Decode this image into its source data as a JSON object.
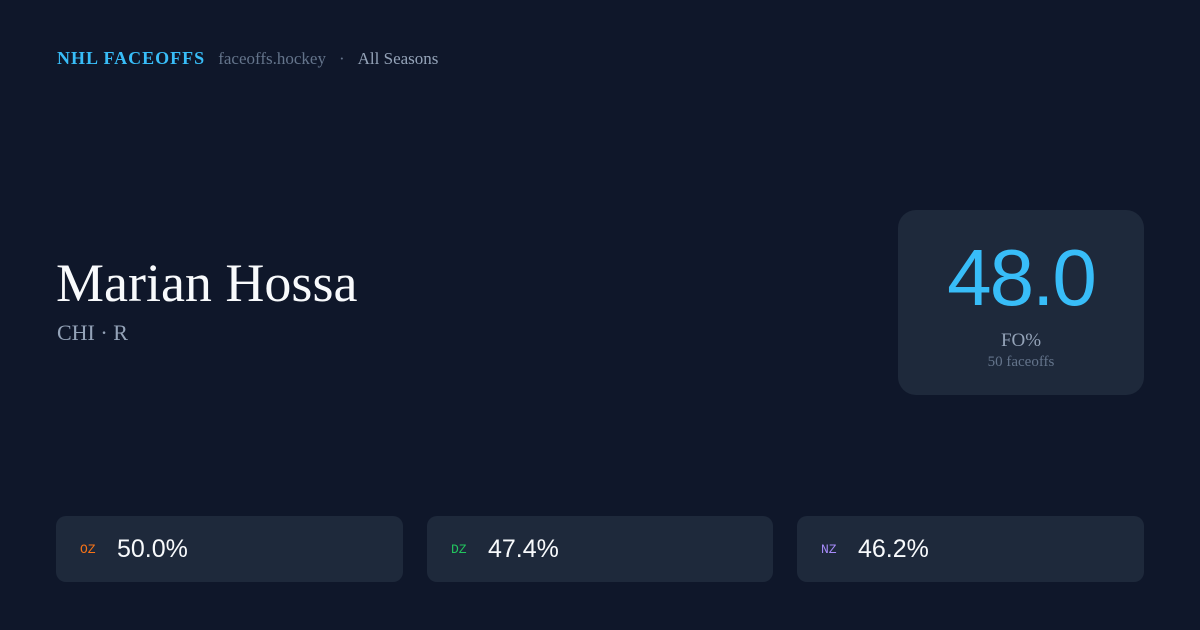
{
  "header": {
    "brand": "NHL FACEOFFS",
    "site": "faceoffs.hockey",
    "separator": "·",
    "season": "All Seasons"
  },
  "player": {
    "name": "Marian Hossa",
    "subtitle": "CHI · R"
  },
  "summary": {
    "fo_pct": "48.0",
    "label": "FO%",
    "faceoffs": "50 faceoffs",
    "accent": "#38bdf8"
  },
  "zones": [
    {
      "label": "OZ",
      "value": "50.0%",
      "color": "#f97316"
    },
    {
      "label": "DZ",
      "value": "47.4%",
      "color": "#22c55e"
    },
    {
      "label": "NZ",
      "value": "46.2%",
      "color": "#a78bfa"
    }
  ]
}
